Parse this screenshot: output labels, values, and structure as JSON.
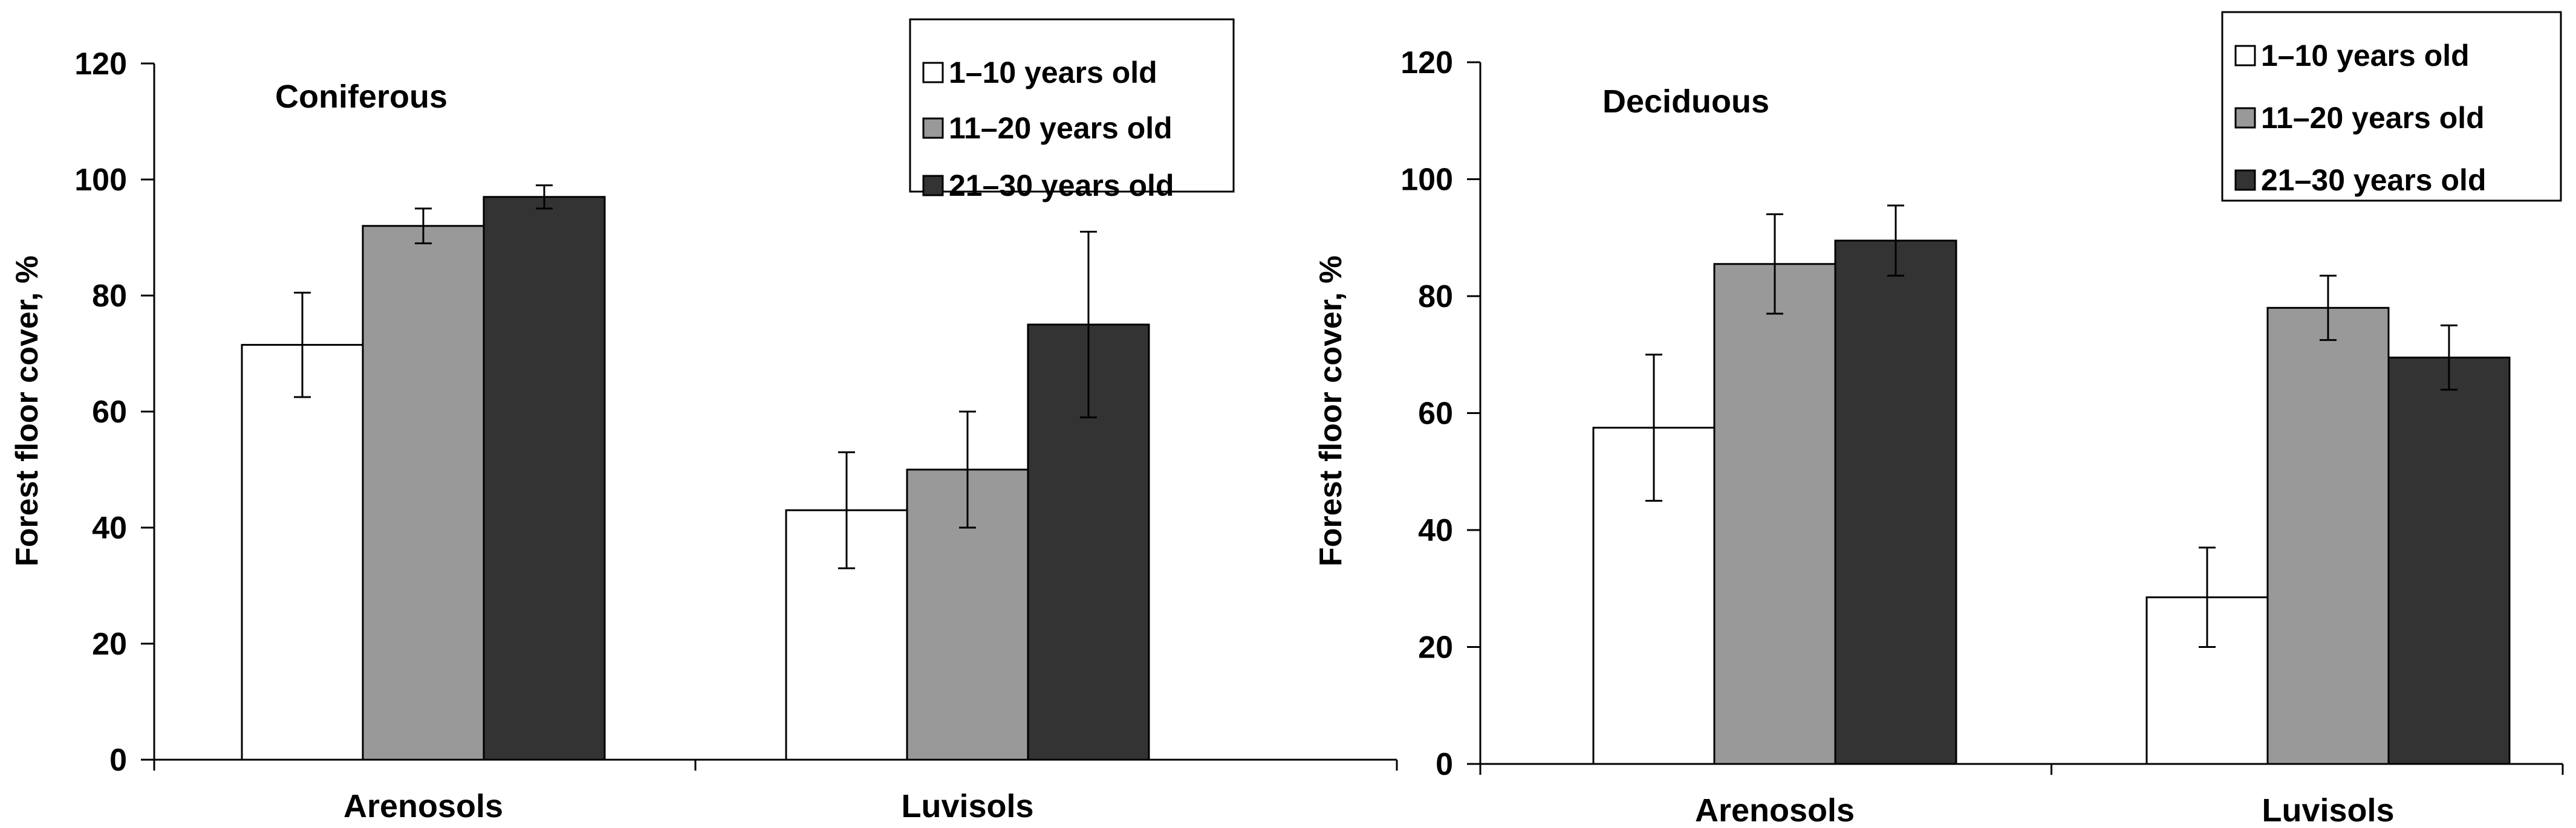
{
  "chart_data": [
    {
      "type": "bar",
      "title": "Coniferous",
      "ylabel": "Forest floor cover, %",
      "xlabel": "",
      "ylim": [
        0,
        120
      ],
      "yticks": [
        0,
        20,
        40,
        60,
        80,
        100,
        120
      ],
      "categories": [
        "Arenosols",
        "Luvisols"
      ],
      "series": [
        {
          "name": "1–10 years old",
          "color": "#ffffff",
          "values": [
            71.5,
            43
          ],
          "errors": [
            9,
            10
          ]
        },
        {
          "name": "11–20 years old",
          "color": "#999999",
          "values": [
            92,
            50
          ],
          "errors": [
            3,
            10
          ]
        },
        {
          "name": "21–30 years old",
          "color": "#333333",
          "values": [
            97,
            75
          ],
          "errors": [
            2,
            16
          ]
        }
      ],
      "legend_position": "top-right",
      "grid": false
    },
    {
      "type": "bar",
      "title": "Deciduous",
      "ylabel": "Forest floor cover, %",
      "xlabel": "",
      "ylim": [
        0,
        120
      ],
      "yticks": [
        0,
        20,
        40,
        60,
        80,
        100,
        120
      ],
      "categories": [
        "Arenosols",
        "Luvisols"
      ],
      "series": [
        {
          "name": "1–10 years old",
          "color": "#ffffff",
          "values": [
            57.5,
            28.5
          ],
          "errors": [
            12.5,
            8.5
          ]
        },
        {
          "name": "11–20 years old",
          "color": "#999999",
          "values": [
            85.5,
            78
          ],
          "errors": [
            8.5,
            5.5
          ]
        },
        {
          "name": "21–30 years old",
          "color": "#333333",
          "values": [
            89.5,
            69.5
          ],
          "errors": [
            6,
            5.5
          ]
        }
      ],
      "legend_position": "top-right",
      "grid": false
    }
  ]
}
